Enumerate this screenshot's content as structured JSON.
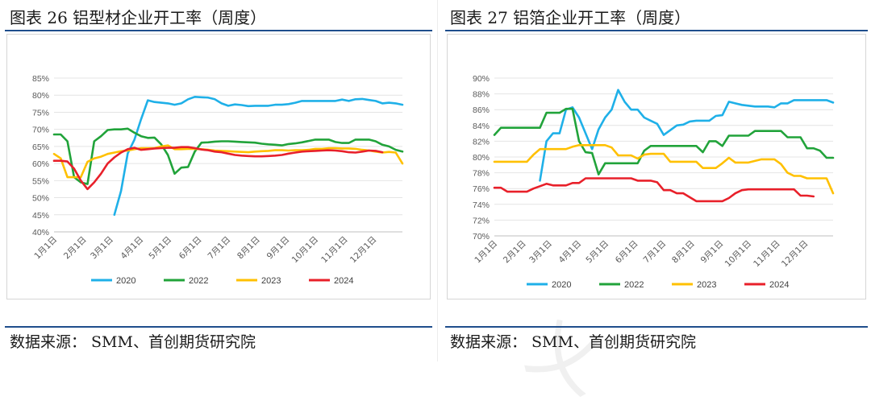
{
  "panels": [
    {
      "title": "图表 26 铝型材企业开工率（周度）",
      "source": "数据来源：  SMM、首创期货研究院"
    },
    {
      "title": "图表 27 铝箔企业开工率（周度）",
      "source": "数据来源：  SMM、首创期货研究院"
    }
  ],
  "chart_data": [
    {
      "type": "line",
      "ylim": [
        40,
        85
      ],
      "yticks": [
        40,
        45,
        50,
        55,
        60,
        65,
        70,
        75,
        80,
        85
      ],
      "ytick_labels": [
        "40%",
        "45%",
        "50%",
        "55%",
        "60%",
        "65%",
        "70%",
        "75%",
        "80%",
        "85%"
      ],
      "xlim": [
        0,
        52
      ],
      "xtick_labels": [
        "1月1日",
        "2月1日",
        "3月1日",
        "4月1日",
        "5月1日",
        "6月1日",
        "7月1日",
        "8月1日",
        "9月1日",
        "10月1日",
        "11月1日",
        "12月1日"
      ],
      "xtick_weeks": [
        0,
        4.4,
        8.4,
        12.9,
        17.1,
        21.6,
        25.9,
        30.3,
        34.7,
        39.0,
        43.4,
        47.7
      ],
      "legend_position": "bottom",
      "grid": "horizontal",
      "series": [
        {
          "name": "2020",
          "color": "#1fb0e8",
          "x": [
            9,
            10,
            11,
            12,
            13,
            14,
            15,
            16,
            17,
            18,
            19,
            20,
            21,
            22,
            23,
            24,
            25,
            26,
            27,
            28,
            29,
            30,
            31,
            32,
            33,
            34,
            35,
            36,
            37,
            38,
            39,
            40,
            41,
            42,
            43,
            44,
            45,
            46,
            47,
            48,
            49,
            50,
            51,
            52
          ],
          "values": [
            45,
            52,
            63,
            67,
            73,
            78.5,
            78,
            77.8,
            77.6,
            77.2,
            77.6,
            78.8,
            79.5,
            79.4,
            79.3,
            78.8,
            77.6,
            76.9,
            77.3,
            77.1,
            76.8,
            76.9,
            76.9,
            76.9,
            77.2,
            77.2,
            77.4,
            77.8,
            78.3,
            78.3,
            78.3,
            78.3,
            78.3,
            78.3,
            78.7,
            78.3,
            78.8,
            78.9,
            78.6,
            78.3,
            77.6,
            77.8,
            77.6,
            77.2
          ]
        },
        {
          "name": "2022",
          "color": "#21a33a",
          "x": [
            0,
            1,
            2,
            3,
            4,
            5,
            6,
            7,
            8,
            9,
            10,
            11,
            12,
            13,
            14,
            15,
            16,
            17,
            18,
            19,
            20,
            21,
            22,
            23,
            24,
            25,
            26,
            27,
            28,
            29,
            30,
            31,
            32,
            33,
            34,
            35,
            36,
            37,
            38,
            39,
            40,
            41,
            42,
            43,
            44,
            45,
            46,
            47,
            48,
            49,
            50,
            51,
            52
          ],
          "values": [
            68.5,
            68.5,
            66.5,
            56,
            54.5,
            54,
            66.5,
            68,
            69.8,
            70,
            70,
            70.2,
            69,
            68,
            67.5,
            67.6,
            65.6,
            62.5,
            57,
            58.8,
            59,
            63.5,
            66.1,
            66.2,
            66.4,
            66.5,
            66.5,
            66.4,
            66.3,
            66.2,
            66.1,
            65.8,
            65.6,
            65.5,
            65.3,
            65.7,
            65.9,
            66.2,
            66.6,
            67,
            67,
            67,
            66.3,
            66,
            66,
            67,
            67,
            67,
            66.5,
            65.5,
            65,
            64,
            63.5
          ]
        },
        {
          "name": "2023",
          "color": "#ffc000",
          "x": [
            0,
            1,
            2,
            3,
            4,
            5,
            6,
            7,
            8,
            9,
            10,
            11,
            12,
            13,
            14,
            15,
            16,
            17,
            18,
            19,
            20,
            21,
            22,
            23,
            24,
            25,
            26,
            27,
            28,
            29,
            30,
            31,
            32,
            33,
            34,
            35,
            36,
            37,
            38,
            39,
            40,
            41,
            42,
            43,
            44,
            45,
            46,
            47,
            48,
            49,
            50,
            51,
            52
          ],
          "values": [
            62.8,
            61.5,
            56,
            56,
            56,
            60.5,
            61.5,
            62,
            62.8,
            63.2,
            63.6,
            63.8,
            64.2,
            64.5,
            64.5,
            64.5,
            65,
            65.3,
            64.2,
            64.2,
            64.3,
            64.3,
            64.2,
            64,
            63.8,
            63.7,
            63.6,
            63.5,
            63.4,
            63.3,
            63.5,
            63.6,
            63.7,
            63.9,
            63.9,
            63.8,
            63.9,
            63.9,
            64,
            64.3,
            64.3,
            64.5,
            64.5,
            64.4,
            64.4,
            64.3,
            64,
            63.8,
            63.5,
            63.2,
            63.4,
            63.2,
            60
          ]
        },
        {
          "name": "2024",
          "color": "#e8202a",
          "x": [
            0,
            1,
            2,
            3,
            4,
            5,
            6,
            7,
            8,
            9,
            10,
            11,
            12,
            13,
            14,
            15,
            16,
            17,
            18,
            19,
            20,
            21,
            22,
            23,
            24,
            25,
            26,
            27,
            28,
            29,
            30,
            31,
            32,
            33,
            34,
            35,
            36,
            37,
            38,
            39,
            40,
            41,
            42,
            43,
            44,
            45,
            46,
            47,
            48,
            49
          ],
          "values": [
            60.8,
            60.8,
            60.6,
            58.5,
            55,
            52.5,
            54.5,
            57,
            60,
            61.8,
            63.2,
            64.2,
            64.6,
            64,
            64.2,
            64.4,
            64.5,
            64.6,
            64.6,
            64.8,
            64.8,
            64.5,
            64.1,
            63.9,
            63.5,
            63.3,
            62.9,
            62.5,
            62.3,
            62.2,
            62.1,
            62.1,
            62.2,
            62.3,
            62.5,
            62.9,
            63.2,
            63.5,
            63.6,
            63.7,
            63.8,
            63.9,
            63.8,
            63.6,
            63.3,
            63.2,
            63.5,
            63.8,
            63.7,
            63.3
          ]
        }
      ]
    },
    {
      "type": "line",
      "ylim": [
        70,
        90
      ],
      "yticks": [
        70,
        72,
        74,
        76,
        78,
        80,
        82,
        84,
        86,
        88,
        90
      ],
      "ytick_labels": [
        "70%",
        "72%",
        "74%",
        "76%",
        "78%",
        "80%",
        "82%",
        "84%",
        "86%",
        "88%",
        "90%"
      ],
      "xlim": [
        0,
        52
      ],
      "xtick_labels": [
        "1月1日",
        "2月1日",
        "3月1日",
        "4月1日",
        "5月1日",
        "6月1日",
        "7月1日",
        "8月1日",
        "9月1日",
        "10月1日",
        "11月1日",
        "12月1日"
      ],
      "xtick_weeks": [
        0,
        4.4,
        8.4,
        12.9,
        17.1,
        21.6,
        25.9,
        30.3,
        34.7,
        39.0,
        43.4,
        47.7
      ],
      "legend_position": "bottom",
      "grid": "horizontal",
      "series": [
        {
          "name": "2020",
          "color": "#1fb0e8",
          "x": [
            7,
            8,
            9,
            10,
            11,
            12,
            13,
            14,
            15,
            16,
            17,
            18,
            19,
            20,
            21,
            22,
            23,
            24,
            25,
            26,
            27,
            28,
            29,
            30,
            31,
            32,
            33,
            34,
            35,
            36,
            37,
            38,
            39,
            40,
            41,
            42,
            43,
            44,
            45,
            46,
            47,
            48,
            49,
            50,
            51,
            52
          ],
          "values": [
            77,
            82,
            83,
            83,
            86,
            86.3,
            85,
            83,
            81,
            83.5,
            85,
            86,
            88.5,
            87,
            86,
            86,
            85,
            84.6,
            84.2,
            82.8,
            83.4,
            84,
            84.1,
            84.5,
            84.6,
            84.6,
            84.6,
            85.2,
            85.3,
            87,
            86.8,
            86.6,
            86.5,
            86.4,
            86.4,
            86.4,
            86.3,
            86.8,
            86.8,
            87.2,
            87.2,
            87.2,
            87.2,
            87.2,
            87.2,
            86.9
          ]
        },
        {
          "name": "2022",
          "color": "#21a33a",
          "x": [
            0,
            1,
            2,
            3,
            4,
            5,
            6,
            7,
            8,
            9,
            10,
            11,
            12,
            13,
            14,
            15,
            16,
            17,
            18,
            19,
            20,
            21,
            22,
            23,
            24,
            25,
            26,
            27,
            28,
            29,
            30,
            31,
            32,
            33,
            34,
            35,
            36,
            37,
            38,
            39,
            40,
            41,
            42,
            43,
            44,
            45,
            46,
            47,
            48,
            49,
            50,
            51,
            52
          ],
          "values": [
            82.8,
            83.7,
            83.7,
            83.7,
            83.7,
            83.7,
            83.7,
            83.7,
            85.6,
            85.6,
            85.6,
            86.1,
            86.1,
            82,
            80.6,
            80.5,
            77.8,
            79.2,
            79.2,
            79.2,
            79.2,
            79.2,
            79.2,
            80.8,
            81.4,
            81.4,
            81.4,
            81.4,
            81.4,
            81.4,
            81.4,
            81.4,
            80.6,
            82,
            82,
            81.4,
            82.7,
            82.7,
            82.7,
            82.7,
            83.3,
            83.3,
            83.3,
            83.3,
            83.3,
            82.5,
            82.5,
            82.5,
            81.1,
            81.1,
            80.8,
            79.9,
            79.9
          ]
        },
        {
          "name": "2023",
          "color": "#ffc000",
          "x": [
            0,
            1,
            2,
            3,
            4,
            5,
            6,
            7,
            8,
            9,
            10,
            11,
            12,
            13,
            14,
            15,
            16,
            17,
            18,
            19,
            20,
            21,
            22,
            23,
            24,
            25,
            26,
            27,
            28,
            29,
            30,
            31,
            32,
            33,
            34,
            35,
            36,
            37,
            38,
            39,
            40,
            41,
            42,
            43,
            44,
            45,
            46,
            47,
            48,
            49,
            50,
            51,
            52
          ],
          "values": [
            79.4,
            79.4,
            79.4,
            79.4,
            79.4,
            79.4,
            80.3,
            81,
            81,
            81,
            81,
            81,
            81.3,
            81.5,
            81.5,
            81.5,
            81.5,
            81.5,
            81.2,
            80.2,
            80.2,
            80.2,
            79.8,
            80.3,
            80.4,
            80.4,
            80.4,
            79.4,
            79.4,
            79.4,
            79.4,
            79.4,
            78.6,
            78.6,
            78.6,
            79.2,
            79.9,
            79.3,
            79.3,
            79.3,
            79.5,
            79.7,
            79.7,
            79.7,
            79.1,
            78,
            77.6,
            77.6,
            77.3,
            77.3,
            77.3,
            77.3,
            75.4
          ]
        },
        {
          "name": "2024",
          "color": "#e8202a",
          "x": [
            0,
            1,
            2,
            3,
            4,
            5,
            6,
            7,
            8,
            9,
            10,
            11,
            12,
            13,
            14,
            15,
            16,
            17,
            18,
            19,
            20,
            21,
            22,
            23,
            24,
            25,
            26,
            27,
            28,
            29,
            30,
            31,
            32,
            33,
            34,
            35,
            36,
            37,
            38,
            39,
            40,
            41,
            42,
            43,
            44,
            45,
            46,
            47,
            48,
            49
          ],
          "values": [
            76.1,
            76.1,
            75.6,
            75.6,
            75.6,
            75.6,
            76,
            76.3,
            76.6,
            76.4,
            76.4,
            76.4,
            76.7,
            76.7,
            77.3,
            77.3,
            77.3,
            77.3,
            77.3,
            77.3,
            77.3,
            77.3,
            77,
            77,
            77,
            76.8,
            75.8,
            75.8,
            75.4,
            75.4,
            74.9,
            74.4,
            74.4,
            74.4,
            74.4,
            74.4,
            74.8,
            75.4,
            75.8,
            75.9,
            75.9,
            75.9,
            75.9,
            75.9,
            75.9,
            75.9,
            75.9,
            75.1,
            75.1,
            75
          ]
        }
      ]
    }
  ]
}
